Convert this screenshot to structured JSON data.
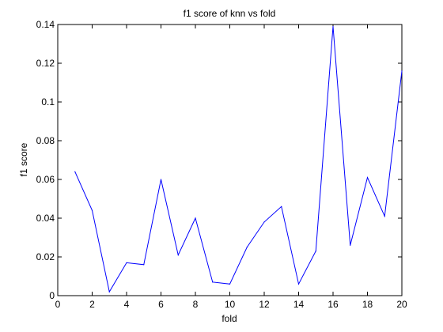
{
  "chart_data": {
    "type": "line",
    "title": "f1 score of knn vs fold",
    "xlabel": "fold",
    "ylabel": "f1 score",
    "xlim": [
      0,
      20
    ],
    "ylim": [
      0,
      0.14
    ],
    "x_ticks": [
      0,
      2,
      4,
      6,
      8,
      10,
      12,
      14,
      16,
      18,
      20
    ],
    "x_tick_labels": [
      "0",
      "2",
      "4",
      "6",
      "8",
      "10",
      "12",
      "14",
      "16",
      "18",
      "20"
    ],
    "y_ticks": [
      0,
      0.02,
      0.04,
      0.06,
      0.08,
      0.1,
      0.12,
      0.14
    ],
    "y_tick_labels": [
      "0",
      "0.02",
      "0.04",
      "0.06",
      "0.08",
      "0.1",
      "0.12",
      "0.14"
    ],
    "grid": false,
    "series": [
      {
        "color": "#0000ff",
        "x": [
          1,
          2,
          3,
          4,
          5,
          6,
          7,
          8,
          9,
          10,
          11,
          12,
          13,
          14,
          15,
          16,
          17,
          18,
          19,
          20
        ],
        "values": [
          0.064,
          0.044,
          0.002,
          0.017,
          0.016,
          0.06,
          0.021,
          0.04,
          0.007,
          0.006,
          0.025,
          0.038,
          0.046,
          0.006,
          0.023,
          0.139,
          0.026,
          0.061,
          0.041,
          0.116
        ]
      }
    ]
  }
}
